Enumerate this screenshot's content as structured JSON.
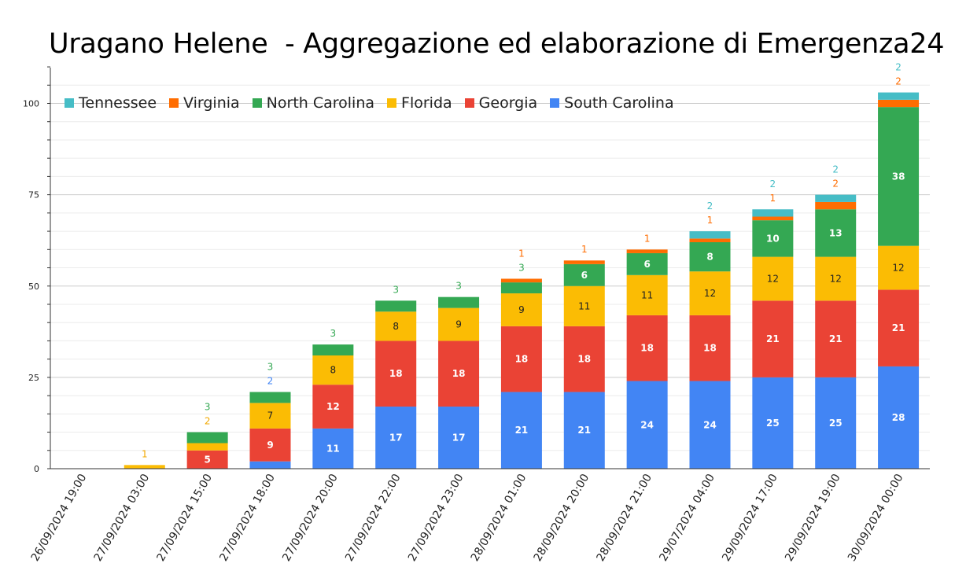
{
  "chart_data": {
    "type": "bar",
    "stacked": true,
    "title": "Uragano Helene  - Aggregazione ed elaborazione di Emergenza24",
    "categories": [
      "26/09/2024 19:00",
      "27/09/2024 03:00",
      "27/09/2024 15:00",
      "27/09/2024 18:00",
      "27/09/2024 20:00",
      "27/09/2024 22:00",
      "27/09/2024 23:00",
      "28/09/2024 01:00",
      "28/09/2024 20:00",
      "28/09/2024 21:00",
      "29/07/2024 04:00",
      "29/09/2024 17:00",
      "29/09/2024 19:00",
      "30/09/2024 00:00"
    ],
    "ylim": [
      0,
      110
    ],
    "yticks": [
      0,
      25,
      50,
      75,
      100
    ],
    "ytick_labels": [
      "0",
      "25",
      "50",
      "75",
      "100"
    ],
    "grid": true,
    "legend_position": "top-left",
    "series": [
      {
        "name": "South Carolina",
        "color": "#4285F4",
        "values": [
          0,
          0,
          0,
          2,
          11,
          17,
          17,
          21,
          21,
          24,
          24,
          25,
          25,
          28
        ],
        "labels": [
          null,
          null,
          null,
          "2",
          "11",
          "17",
          "17",
          "21",
          "21",
          "24",
          "24",
          "25",
          "25",
          "28"
        ]
      },
      {
        "name": "Georgia",
        "color": "#EA4335",
        "values": [
          0,
          0,
          5,
          9,
          12,
          18,
          18,
          18,
          18,
          18,
          18,
          21,
          21,
          21
        ],
        "labels": [
          null,
          null,
          "5",
          "9",
          "12",
          "18",
          "18",
          "18",
          "18",
          "18",
          "18",
          "21",
          "21",
          "21"
        ]
      },
      {
        "name": "Florida",
        "color": "#FBBC04",
        "values": [
          0,
          1,
          2,
          7,
          8,
          8,
          9,
          9,
          11,
          11,
          12,
          12,
          12,
          12
        ],
        "labels": [
          null,
          "1",
          "2",
          "7",
          "8",
          "8",
          "9",
          "9",
          "11",
          "11",
          "12",
          "12",
          "12",
          "12"
        ]
      },
      {
        "name": "North Carolina",
        "color": "#34A853",
        "values": [
          0,
          0,
          3,
          3,
          3,
          3,
          3,
          3,
          6,
          6,
          8,
          10,
          13,
          38
        ],
        "labels": [
          null,
          null,
          "3",
          "3",
          "3",
          "3",
          "3",
          "3",
          "6",
          "6",
          "8",
          "10",
          "13",
          "38"
        ]
      },
      {
        "name": "Virginia",
        "color": "#FF6D01",
        "values": [
          0,
          0,
          0,
          0,
          0,
          0,
          0,
          1,
          1,
          1,
          1,
          1,
          2,
          2
        ],
        "labels": [
          null,
          null,
          null,
          null,
          null,
          null,
          null,
          "1",
          "1",
          "1",
          "1",
          "1",
          "2",
          "2"
        ]
      },
      {
        "name": "Tennessee",
        "color": "#46BDC6",
        "values": [
          0,
          0,
          0,
          0,
          0,
          0,
          0,
          0,
          0,
          0,
          2,
          2,
          2,
          2
        ],
        "labels": [
          null,
          null,
          null,
          null,
          null,
          null,
          null,
          null,
          null,
          null,
          "2",
          "2",
          "2",
          "2"
        ]
      }
    ],
    "legend_order": [
      "Tennessee",
      "Virginia",
      "North Carolina",
      "Florida",
      "Georgia",
      "South Carolina"
    ]
  }
}
